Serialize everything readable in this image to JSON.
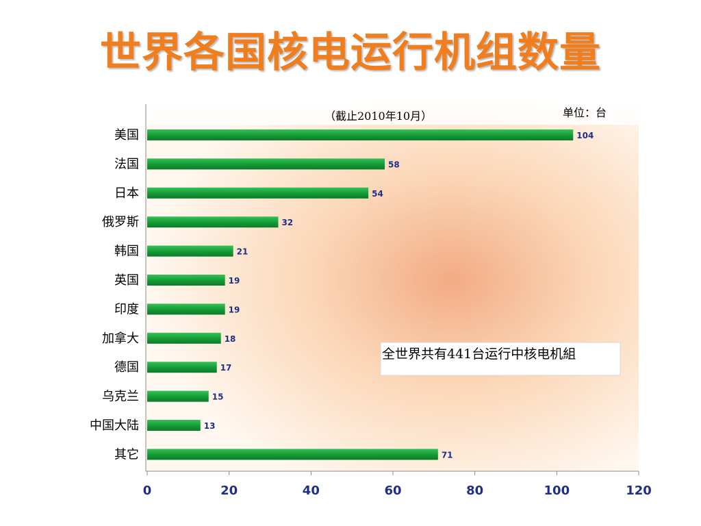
{
  "title": "世界各国核电运行机组数量",
  "chart_data": {
    "type": "bar",
    "orientation": "horizontal",
    "subtitle": "（截止2010年10月）",
    "unit_note": "单位：台",
    "callout": "全世界共有441台运行中核电机組",
    "categories": [
      "美国",
      "法国",
      "日本",
      "俄罗斯",
      "韩国",
      "英国",
      "印度",
      "加拿大",
      "德国",
      "乌克兰",
      "中国大陆",
      "其它"
    ],
    "values": [
      104,
      58,
      54,
      32,
      21,
      19,
      19,
      18,
      17,
      15,
      13,
      71
    ],
    "xlim": [
      0,
      120
    ],
    "xticks": [
      0,
      20,
      40,
      60,
      80,
      100,
      120
    ],
    "grid": false,
    "bar_color": "#1aa33a"
  }
}
